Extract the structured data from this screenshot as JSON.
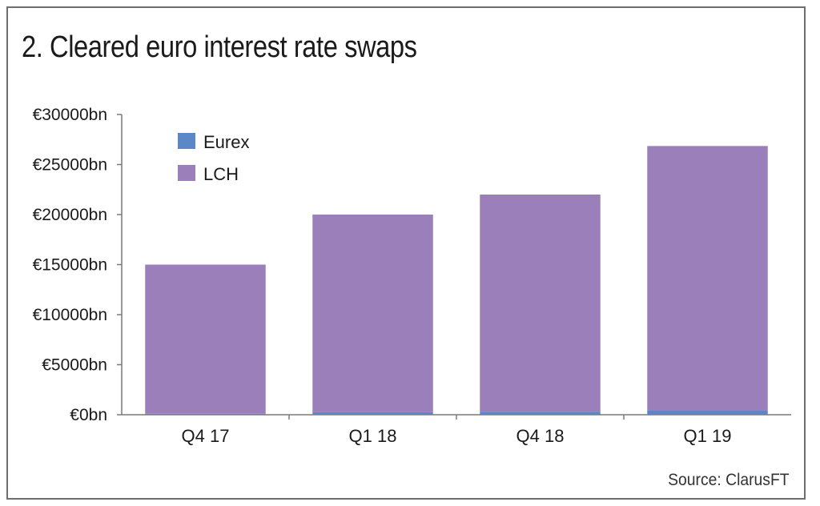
{
  "title": "2. Cleared euro interest rate swaps",
  "source": "Source: ClarusFT",
  "colors": {
    "eurex": "#5b86c8",
    "lch": "#9b7fbb",
    "axis": "#7a7a7a"
  },
  "chart_data": {
    "type": "bar",
    "stacked": true,
    "categories": [
      "Q4 17",
      "Q1 18",
      "Q4 18",
      "Q1 19"
    ],
    "series": [
      {
        "name": "Eurex",
        "values": [
          100,
          250,
          300,
          450
        ]
      },
      {
        "name": "LCH",
        "values": [
          14900,
          19750,
          21700,
          26400
        ]
      }
    ],
    "ylim": [
      0,
      30000
    ],
    "yticks": [
      0,
      5000,
      10000,
      15000,
      20000,
      25000,
      30000
    ],
    "ytick_labels": [
      "€0bn",
      "€5000bn",
      "€10000bn",
      "€15000bn",
      "€20000bn",
      "€25000bn",
      "€30000bn"
    ],
    "legend_position": "top-left",
    "grid": false
  }
}
